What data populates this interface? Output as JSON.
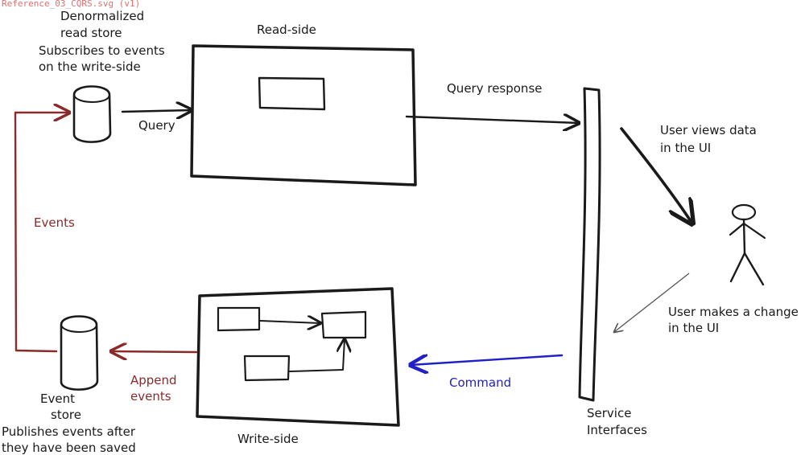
{
  "header": {
    "file_label": "Reference_03_CQRS.svg (v1)"
  },
  "read_store": {
    "title_line1": "Denormalized",
    "title_line2": "read store",
    "desc_line1": "Subscribes to events",
    "desc_line2": "on the write-side"
  },
  "read_side": {
    "title": "Read-side"
  },
  "write_side": {
    "title": "Write-side"
  },
  "service": {
    "line1": "Service",
    "line2": "Interfaces"
  },
  "event_store": {
    "title_line1": "Event",
    "title_line2": "store",
    "desc_line1": "Publishes events after",
    "desc_line2": "they have been saved"
  },
  "arrows": {
    "query": "Query",
    "query_response": "Query response",
    "user_views_line1": "User views data",
    "user_views_line2": "in the UI",
    "user_makes_line1": "User makes a change",
    "user_makes_line2": "in the UI",
    "command": "Command",
    "events": "Events",
    "append_line1": "Append",
    "append_line2": "events"
  },
  "colors": {
    "ink": "#1a1a1a",
    "events": "#8b2a2a",
    "command": "#2020c8",
    "file_label": "#e07070",
    "thin_arrow": "#555555"
  }
}
